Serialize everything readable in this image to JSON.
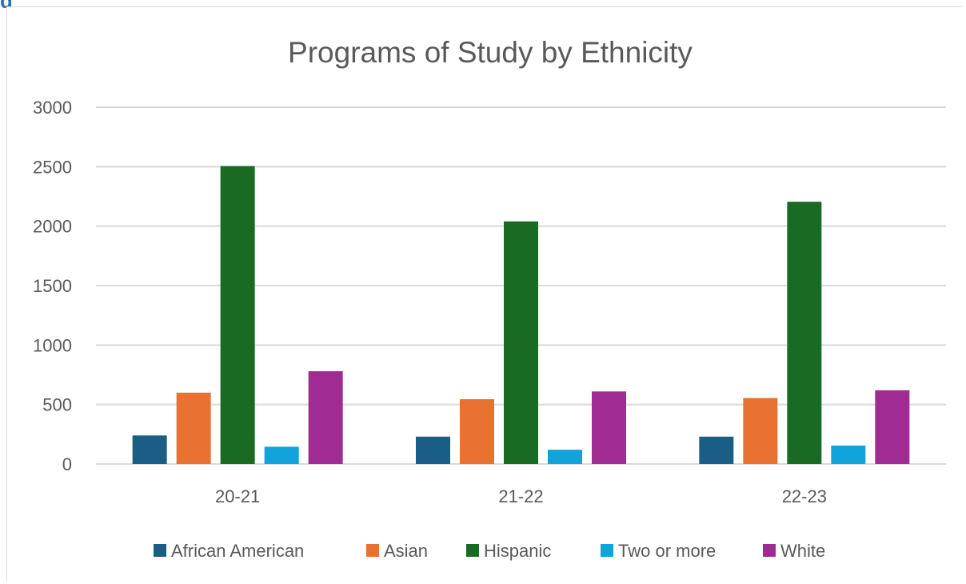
{
  "page_fragment": "g",
  "chart_data": {
    "type": "bar",
    "title": "Programs of Study by Ethnicity",
    "xlabel": "",
    "ylabel": "",
    "categories": [
      "20-21",
      "21-22",
      "22-23"
    ],
    "ylim": [
      0,
      3000
    ],
    "yticks": [
      0,
      500,
      1000,
      1500,
      2000,
      2500,
      3000
    ],
    "grid": true,
    "legend_position": "bottom",
    "series": [
      {
        "name": "African American",
        "color": "#1b5e85",
        "values": [
          240,
          230,
          230
        ]
      },
      {
        "name": "Asian",
        "color": "#e97132",
        "values": [
          600,
          545,
          555
        ]
      },
      {
        "name": "Hispanic",
        "color": "#196b24",
        "values": [
          2505,
          2040,
          2205
        ]
      },
      {
        "name": "Two or more",
        "color": "#11a4db",
        "values": [
          145,
          120,
          155
        ]
      },
      {
        "name": "White",
        "color": "#a02b93",
        "values": [
          780,
          610,
          620
        ]
      }
    ]
  }
}
